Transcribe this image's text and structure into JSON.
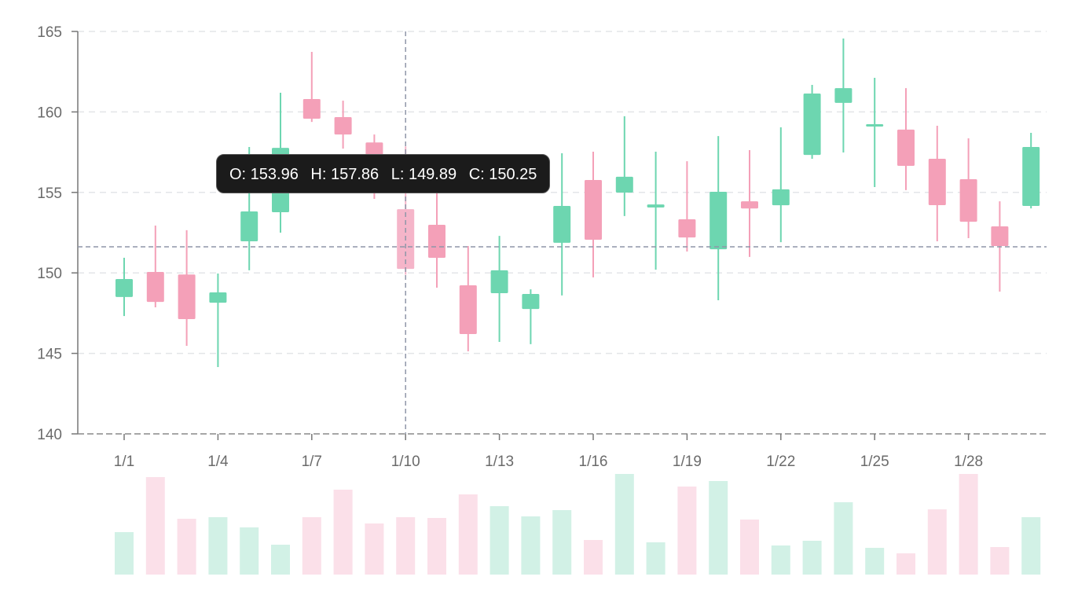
{
  "chart_data": {
    "type": "candlestick",
    "title": "",
    "xlabel": "",
    "ylabel": "",
    "ylim": [
      140,
      165
    ],
    "yticks": [
      "140",
      "145",
      "150",
      "155",
      "160",
      "165"
    ],
    "xticks": [
      "1/1",
      "1/4",
      "1/7",
      "1/10",
      "1/13",
      "1/16",
      "1/19",
      "1/22",
      "1/25",
      "1/28"
    ],
    "grid": "horizontal dashed",
    "colors": {
      "up": "#6dd6b0",
      "down": "#f4a0b8",
      "up_volume": "#d2f1e6",
      "down_volume": "#fbe0e9",
      "highlight": "#f5b5c9",
      "crosshair": "#8f96a8"
    },
    "dates": [
      "1/1",
      "1/2",
      "1/3",
      "1/4",
      "1/5",
      "1/6",
      "1/7",
      "1/8",
      "1/9",
      "1/10",
      "1/11",
      "1/12",
      "1/13",
      "1/14",
      "1/15",
      "1/16",
      "1/17",
      "1/18",
      "1/19",
      "1/20",
      "1/21",
      "1/22",
      "1/23",
      "1/24",
      "1/25",
      "1/26",
      "1/27",
      "1/28",
      "1/29",
      "1/30"
    ],
    "open": [
      148.5,
      150.06,
      149.9,
      148.15,
      151.96,
      153.77,
      160.8,
      159.68,
      158.1,
      153.96,
      152.99,
      149.23,
      148.74,
      147.76,
      151.87,
      155.77,
      154.99,
      154.06,
      153.33,
      151.47,
      154.45,
      154.2,
      157.33,
      160.56,
      159.14,
      158.9,
      157.09,
      155.82,
      152.89,
      154.16
    ],
    "high": [
      150.94,
      152.94,
      152.65,
      149.96,
      157.82,
      161.19,
      163.73,
      160.7,
      158.6,
      157.86,
      156.5,
      151.67,
      152.3,
      148.98,
      157.43,
      157.53,
      159.73,
      157.53,
      156.94,
      158.5,
      157.63,
      159.04,
      161.68,
      164.56,
      162.12,
      161.48,
      159.14,
      158.36,
      154.45,
      158.7
    ],
    "low": [
      147.32,
      147.86,
      145.47,
      144.15,
      150.16,
      152.5,
      159.38,
      157.72,
      154.6,
      149.89,
      149.08,
      145.13,
      145.71,
      145.57,
      148.6,
      149.72,
      153.53,
      150.2,
      151.33,
      148.3,
      150.99,
      151.91,
      157.09,
      157.48,
      155.33,
      155.14,
      151.96,
      152.16,
      148.84,
      154.01
    ],
    "close": [
      149.62,
      148.2,
      147.13,
      148.79,
      153.82,
      157.77,
      159.58,
      158.6,
      155.6,
      150.25,
      150.94,
      146.2,
      150.16,
      148.69,
      154.16,
      152.06,
      155.97,
      154.25,
      152.2,
      155.04,
      154.0,
      155.19,
      161.14,
      161.48,
      159.24,
      156.65,
      154.21,
      153.18,
      151.67,
      157.82
    ],
    "volume": [
      54,
      124,
      71,
      73,
      60,
      38,
      73,
      108,
      65,
      73,
      72,
      102,
      87,
      74,
      82,
      44,
      128,
      41,
      112,
      119,
      70,
      37,
      43,
      92,
      34,
      27,
      83,
      128,
      35,
      73
    ],
    "highlighted_index": 9,
    "crosshair": {
      "x": "1/10",
      "y": 151.62
    },
    "tooltip": {
      "open": "O: 153.96",
      "high": "H: 157.86",
      "low": "L: 149.89",
      "close": "C: 150.25"
    }
  }
}
